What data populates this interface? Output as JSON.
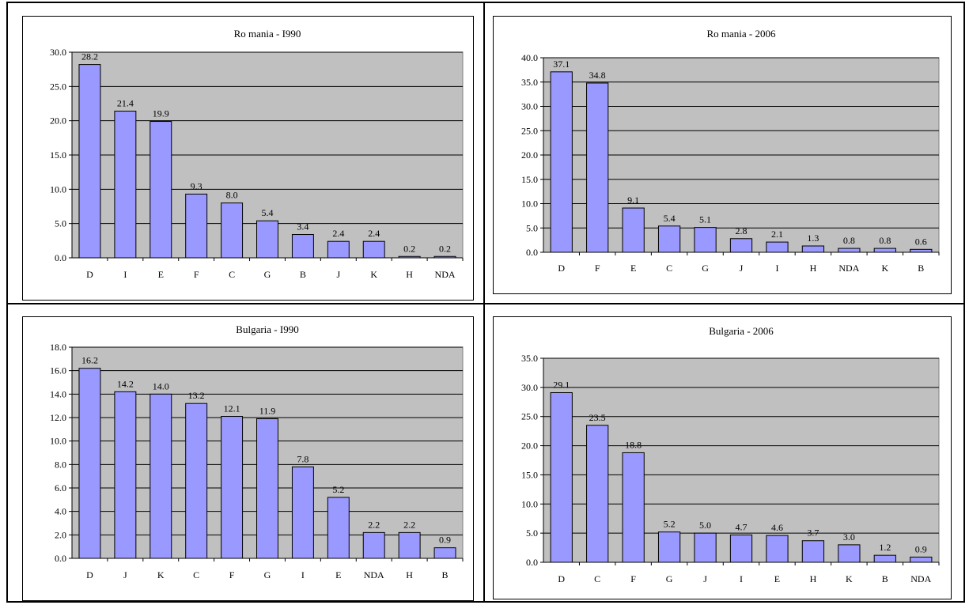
{
  "colors": {
    "plot_bg": "#c0c0c0",
    "bar_fill": "#9999ff",
    "bar_stroke": "#000000"
  },
  "chart_data": [
    {
      "type": "bar",
      "title": "Ro mania - I990",
      "categories": [
        "D",
        "I",
        "E",
        "F",
        "C",
        "G",
        "B",
        "J",
        "K",
        "H",
        "NDA"
      ],
      "values": [
        28.2,
        21.4,
        19.9,
        9.3,
        8.0,
        5.4,
        3.4,
        2.4,
        2.4,
        0.2,
        0.2
      ],
      "value_labels": [
        "28.2",
        "21.4",
        "19.9",
        "9.3",
        "8.0",
        "5.4",
        "3.4",
        "2.4",
        "2.4",
        "0.2",
        "0.2"
      ],
      "ylim": [
        0,
        30
      ],
      "yticks": [
        0,
        5,
        10,
        15,
        20,
        25,
        30
      ],
      "ytick_labels": [
        "0.0",
        "5.0",
        "10.0",
        "15.0",
        "20.0",
        "25.0",
        "30.0"
      ],
      "xlabel": "",
      "ylabel": "",
      "grid": true,
      "legend": "none"
    },
    {
      "type": "bar",
      "title": "Ro mania - 2006",
      "categories": [
        "D",
        "F",
        "E",
        "C",
        "G",
        "J",
        "I",
        "H",
        "NDA",
        "K",
        "B"
      ],
      "values": [
        37.1,
        34.8,
        9.1,
        5.4,
        5.1,
        2.8,
        2.1,
        1.3,
        0.8,
        0.8,
        0.6
      ],
      "value_labels": [
        "37.1",
        "34.8",
        "9.1",
        "5.4",
        "5.1",
        "2.8",
        "2.1",
        "1.3",
        "0.8",
        "0.8",
        "0.6"
      ],
      "ylim": [
        0,
        40
      ],
      "yticks": [
        0,
        5,
        10,
        15,
        20,
        25,
        30,
        35,
        40
      ],
      "ytick_labels": [
        "0.0",
        "5.0",
        "10.0",
        "15.0",
        "20.0",
        "25.0",
        "30.0",
        "35.0",
        "40.0"
      ],
      "xlabel": "",
      "ylabel": "",
      "grid": true,
      "legend": "none"
    },
    {
      "type": "bar",
      "title": "Bulgaria - I990",
      "categories": [
        "D",
        "J",
        "K",
        "C",
        "F",
        "G",
        "I",
        "E",
        "NDA",
        "H",
        "B"
      ],
      "values": [
        16.2,
        14.2,
        14.0,
        13.2,
        12.1,
        11.9,
        7.8,
        5.2,
        2.2,
        2.2,
        0.9
      ],
      "value_labels": [
        "16.2",
        "14.2",
        "14.0",
        "13.2",
        "12.1",
        "11.9",
        "7.8",
        "5.2",
        "2.2",
        "2.2",
        "0.9"
      ],
      "ylim": [
        0,
        18
      ],
      "yticks": [
        0,
        2,
        4,
        6,
        8,
        10,
        12,
        14,
        16,
        18
      ],
      "ytick_labels": [
        "0.0",
        "2.0",
        "4.0",
        "6.0",
        "8.0",
        "10.0",
        "12.0",
        "14.0",
        "16.0",
        "18.0"
      ],
      "xlabel": "",
      "ylabel": "",
      "grid": true,
      "legend": "none"
    },
    {
      "type": "bar",
      "title": "Bulgaria - 2006",
      "categories": [
        "D",
        "C",
        "F",
        "G",
        "J",
        "I",
        "E",
        "H",
        "K",
        "B",
        "NDA"
      ],
      "values": [
        29.1,
        23.5,
        18.8,
        5.2,
        5.0,
        4.7,
        4.6,
        3.7,
        3.0,
        1.2,
        0.9
      ],
      "value_labels": [
        "29.1",
        "23.5",
        "18.8",
        "5.2",
        "5.0",
        "4.7",
        "4.6",
        "3.7",
        "3.0",
        "1.2",
        "0.9"
      ],
      "ylim": [
        0,
        35
      ],
      "yticks": [
        0,
        5,
        10,
        15,
        20,
        25,
        30,
        35
      ],
      "ytick_labels": [
        "0.0",
        "5.0",
        "10.0",
        "15.0",
        "20.0",
        "25.0",
        "30.0",
        "35.0"
      ],
      "xlabel": "",
      "ylabel": "",
      "grid": true,
      "legend": "none"
    }
  ]
}
